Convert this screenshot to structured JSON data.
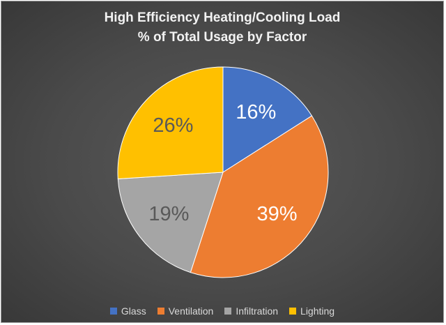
{
  "chart_data": {
    "type": "pie",
    "title_lines": [
      "High Efficiency Heating/Cooling Load",
      "% of Total Usage by Factor"
    ],
    "categories": [
      "Glass",
      "Ventilation",
      "Infiltration",
      "Lighting"
    ],
    "values": [
      16,
      39,
      19,
      26
    ],
    "labels": [
      "16%",
      "39%",
      "19%",
      "26%"
    ],
    "colors": [
      "#4472C4",
      "#ED7D31",
      "#A5A5A5",
      "#FFC000"
    ],
    "label_colors": [
      "#ffffff",
      "#ffffff",
      "#595959",
      "#595959"
    ],
    "legend_position": "bottom"
  }
}
